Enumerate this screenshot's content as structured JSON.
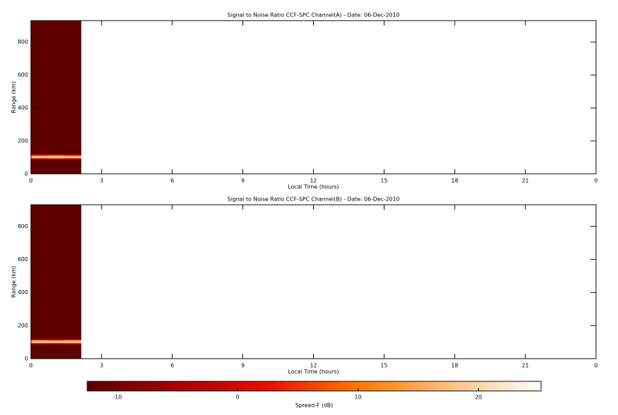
{
  "chart_data": [
    {
      "type": "heatmap",
      "title": "Signal to Noise Ratio CCF-SPC Channel(A) - Date: 06-Dec-2010",
      "x_label": "Local Time (hours)",
      "y_label": "Range (km)",
      "x_edges": [
        0,
        0.7,
        1.4,
        2.13
      ],
      "y_edges": [
        0,
        90,
        97,
        104,
        112,
        118,
        930
      ],
      "z": [
        [
          -12,
          -12,
          -12
        ],
        [
          4,
          6,
          3
        ],
        [
          22,
          20,
          23
        ],
        [
          14,
          16,
          12
        ],
        [
          1,
          3,
          0
        ],
        [
          -12,
          -12,
          -12
        ]
      ],
      "xlim": [
        0,
        24
      ],
      "ylim": [
        0,
        930
      ],
      "xticks": [
        0,
        3,
        6,
        9,
        12,
        15,
        18,
        21,
        {
          "value": 24,
          "label": "0"
        }
      ],
      "yticks": [
        0,
        200,
        400,
        600,
        800
      ]
    },
    {
      "type": "heatmap",
      "title": "Signal to Noise Ratio CCF-SPC Channel(B) - Date: 06-Dec-2010",
      "x_label": "Local Time (hours)",
      "y_label": "Range (km)",
      "x_edges": [
        0,
        0.7,
        1.4,
        2.13
      ],
      "y_edges": [
        0,
        90,
        97,
        104,
        112,
        118,
        930
      ],
      "z": [
        [
          -12,
          -12,
          -12
        ],
        [
          5,
          4,
          6
        ],
        [
          21,
          23,
          20
        ],
        [
          15,
          13,
          16
        ],
        [
          2,
          0,
          3
        ],
        [
          -12,
          -12,
          -12
        ]
      ],
      "xlim": [
        0,
        24
      ],
      "ylim": [
        0,
        930
      ],
      "xticks": [
        0,
        3,
        6,
        9,
        12,
        15,
        18,
        21,
        {
          "value": 24,
          "label": "0"
        }
      ],
      "yticks": [
        0,
        200,
        400,
        600,
        800
      ]
    }
  ],
  "colorbar": {
    "label": "Spread-F (dB)",
    "clim": [
      -12.5,
      25.2
    ],
    "ticks": [
      -10,
      0,
      10,
      20
    ],
    "colorscale": [
      "#5a0000",
      "#a80000",
      "#e81000",
      "#ff7a00",
      "#ffc080",
      "#ffffff"
    ]
  }
}
